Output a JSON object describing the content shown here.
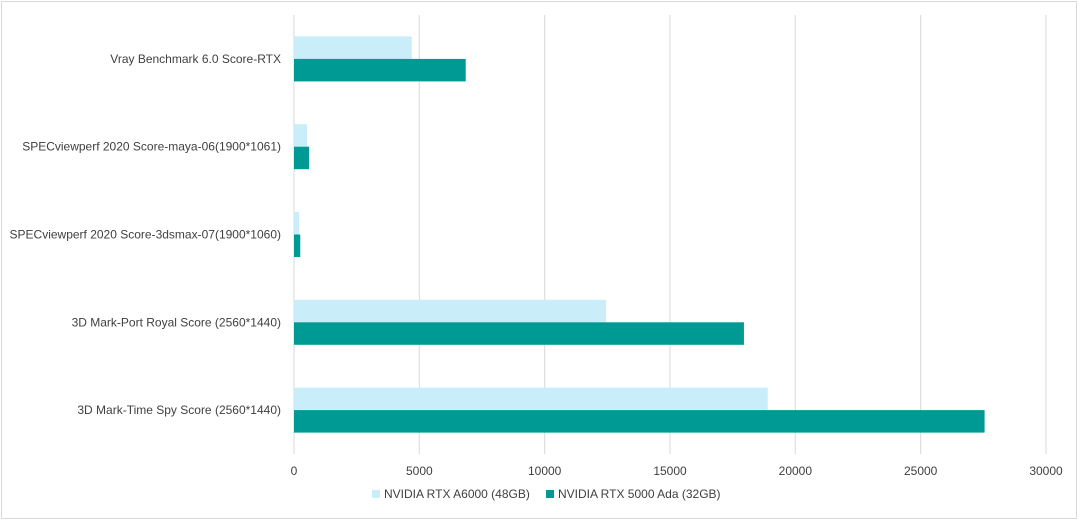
{
  "chart_data": {
    "type": "bar",
    "orientation": "horizontal",
    "categories": [
      "Vray Benchmark 6.0 Score-RTX",
      "SPECviewperf 2020 Score-maya-06(1900*1061)",
      "SPECviewperf 2020 Score-3dsmax-07(1900*1060)",
      "3D Mark-Port Royal Score (2560*1440)",
      "3D Mark-Time Spy Score (2560*1440)"
    ],
    "series": [
      {
        "name": "NVIDIA RTX A6000 (48GB)",
        "color": "#c9eef9",
        "values": [
          4700,
          520,
          200,
          12450,
          18900
        ]
      },
      {
        "name": "NVIDIA RTX 5000 Ada (32GB)",
        "color": "#009a94",
        "values": [
          6850,
          600,
          250,
          17950,
          27550
        ]
      }
    ],
    "xlim": [
      0,
      30000
    ],
    "xticks": [
      "0",
      "5000",
      "10000",
      "15000",
      "20000",
      "25000",
      "30000"
    ],
    "grid": true,
    "legend_position": "bottom"
  }
}
